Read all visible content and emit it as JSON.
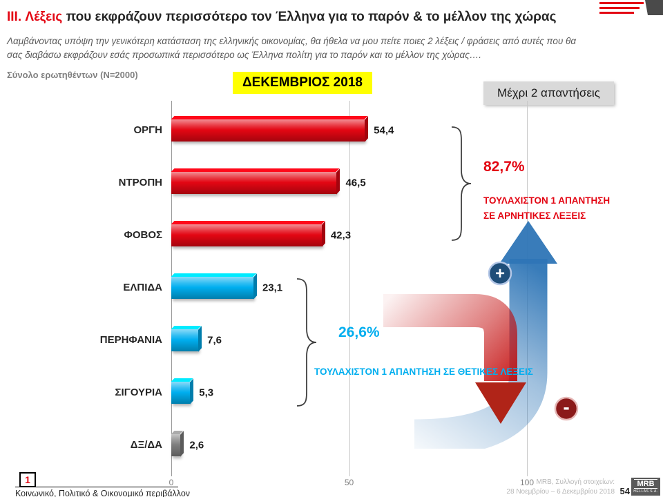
{
  "colors": {
    "accent_red": "#e30613",
    "accent_blue": "#00aeef",
    "highlight_yellow": "#ffff00",
    "arrow_blue": "#2e75b6",
    "arrow_red": "#c00000",
    "bar_gray": "#7f7f7f"
  },
  "header": {
    "title_prefix": "III.",
    "title_red_word": "Λέξεις",
    "title_rest": " που εκφράζουν περισσότερο τον Έλληνα για το παρόν & το μέλλον της χώρας",
    "subtitle_line1": "Λαμβάνοντας υπόψη την γενικότερη κατάσταση της ελληνικής οικονομίας, θα ήθελα να μου πείτε ποιες 2  λέξεις / φράσεις από αυτές που θα",
    "subtitle_line2": "σας διαβάσω εκφράζουν εσάς προσωπικά περισσότερο ως Έλληνα πολίτη για το παρόν και το μέλλον της χώρας….",
    "sample_note": "Σύνολο ερωτηθέντων (N=2000)",
    "wave_label": "ΔΕΚΕΜΒΡΙΟΣ 2018",
    "answers_note": "Μέχρι 2 απαντήσεις"
  },
  "chart_data": {
    "type": "bar",
    "orientation": "horizontal",
    "categories": [
      "ΟΡΓΗ",
      "ΝΤΡΟΠΗ",
      "ΦΟΒΟΣ",
      "ΕΛΠΙΔΑ",
      "ΠΕΡΗΦΑΝΙΑ",
      "ΣΙΓΟΥΡΙΑ",
      "ΔΞ/ΔΑ"
    ],
    "values": [
      54.4,
      46.5,
      42.3,
      23.1,
      7.6,
      5.3,
      2.6
    ],
    "value_labels": [
      "54,4",
      "46,5",
      "42,3",
      "23,1",
      "7,6",
      "5,3",
      "2,6"
    ],
    "bar_colors": [
      "#e30613",
      "#e30613",
      "#e30613",
      "#00aeef",
      "#00aeef",
      "#00aeef",
      "#7f7f7f"
    ],
    "xlim": [
      0,
      100
    ],
    "x_ticks": [
      "0",
      "50",
      "100"
    ],
    "grid": true,
    "legend": "none",
    "title": "ΔΕΚΕΜΒΡΙΟΣ 2018"
  },
  "annotations": {
    "negative": {
      "percent": "82,7%",
      "label_line1": "ΤΟΥΛΑΧΙΣΤΟΝ 1 ΑΠΑΝΤΗΣΗ",
      "label_line2": "ΣΕ ΑΡΝΗΤΙΚΕΣ ΛΕΞΕΙΣ"
    },
    "positive": {
      "percent": "26,6%",
      "label": "ΤΟΥΛΑΧΙΣΤΟΝ 1 ΑΠΑΝΤΗΣΗ ΣΕ ΘΕΤΙΚΕΣ ΛΕΞΕΙΣ"
    },
    "plus_badge": "+",
    "minus_badge": "-"
  },
  "footer": {
    "section_number": "1",
    "section_label": "Κοινωνικό, Πολιτικό & Οικονομικό περιβάλλον",
    "source_line1": "MRB, Συλλογή στοιχείων:",
    "source_line2": "28 Νοεμβρίου – 6 Δεκεμβρίου 2018",
    "page_number": "54",
    "logo_text": "MRB",
    "logo_subtext": "HELLAS S.A."
  }
}
